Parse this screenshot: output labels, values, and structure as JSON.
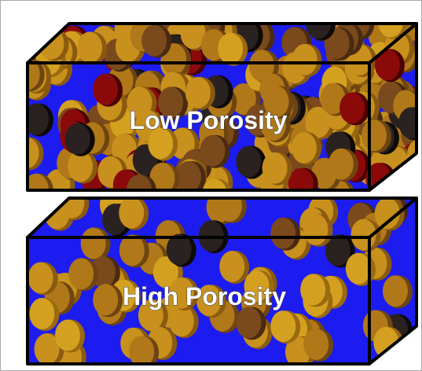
{
  "boxes": [
    {
      "label": "Low Porosity"
    },
    {
      "label": "High Porosity"
    }
  ]
}
